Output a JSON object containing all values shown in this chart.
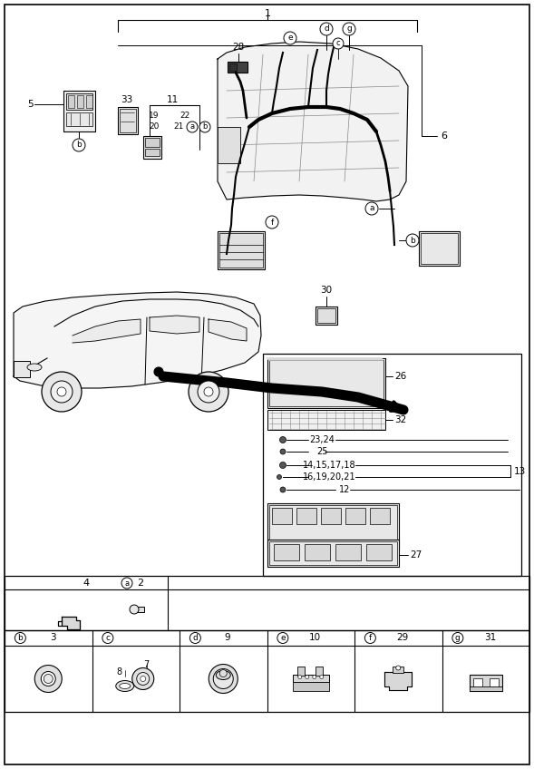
{
  "bg_color": "#ffffff",
  "line_color": "#000000",
  "fig_width": 5.89,
  "fig_height": 8.48,
  "labels": {
    "main": "1",
    "n5": "5",
    "n6": "6",
    "n11": "11",
    "n28": "28",
    "n33": "33",
    "n19": "19",
    "n20": "20",
    "n21": "21",
    "n22": "22",
    "n30": "30",
    "n26": "26",
    "n32": "32",
    "n23_24": "23,24",
    "n25": "25",
    "n14": "14,15,17,18",
    "n16": "16,19,20,21",
    "n13": "13",
    "n12": "12",
    "n27": "27",
    "n7": "7",
    "n8": "8",
    "n2": "2",
    "n3": "3",
    "n4": "4",
    "n9": "9",
    "n10": "10",
    "n29": "29",
    "n31": "31",
    "la": "a",
    "lb": "b",
    "lc": "c",
    "ld": "d",
    "le": "e",
    "lf": "f",
    "lg": "g"
  }
}
